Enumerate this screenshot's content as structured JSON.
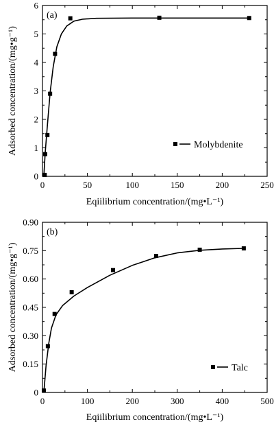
{
  "chart_data": [
    {
      "type": "scatter",
      "panel_label": "(a)",
      "xlabel": "Eqiilibrium concentration/(mg•L⁻¹)",
      "ylabel": "Adsorbed concentration/(mg•g⁻¹)",
      "xlim": [
        0,
        250
      ],
      "ylim": [
        0,
        6
      ],
      "x_ticks": [
        0,
        50,
        100,
        150,
        200,
        250
      ],
      "y_ticks": [
        0,
        1,
        2,
        3,
        4,
        5,
        6
      ],
      "x_tick_labels": [
        "0",
        "50",
        "100",
        "150",
        "200",
        "250"
      ],
      "y_tick_labels": [
        "0",
        "1",
        "2",
        "3",
        "4",
        "5",
        "6"
      ],
      "legend_position": "right",
      "series": [
        {
          "name": "Molybdenite",
          "marker": "square",
          "color": "#000000",
          "points": [
            {
              "x": 2.5,
              "y": 0.05
            },
            {
              "x": 3.0,
              "y": 0.78
            },
            {
              "x": 5.5,
              "y": 1.45
            },
            {
              "x": 8.5,
              "y": 2.9
            },
            {
              "x": 14.0,
              "y": 4.3
            },
            {
              "x": 31.0,
              "y": 5.55
            },
            {
              "x": 130.0,
              "y": 5.57
            },
            {
              "x": 230.0,
              "y": 5.56
            }
          ],
          "fit": [
            {
              "x": 1.5,
              "y": 0.0
            },
            {
              "x": 3.0,
              "y": 0.8
            },
            {
              "x": 5.5,
              "y": 1.8
            },
            {
              "x": 8.5,
              "y": 2.95
            },
            {
              "x": 12.0,
              "y": 3.85
            },
            {
              "x": 16.0,
              "y": 4.55
            },
            {
              "x": 21.0,
              "y": 5.0
            },
            {
              "x": 27.0,
              "y": 5.28
            },
            {
              "x": 35.0,
              "y": 5.45
            },
            {
              "x": 45.0,
              "y": 5.52
            },
            {
              "x": 60.0,
              "y": 5.55
            },
            {
              "x": 100.0,
              "y": 5.56
            },
            {
              "x": 230.0,
              "y": 5.56
            }
          ]
        }
      ]
    },
    {
      "type": "scatter",
      "panel_label": "(b)",
      "xlabel": "Eqiilibrium concentration/(mg•L⁻¹)",
      "ylabel": "Adsorbed concentration/(mg•g⁻¹)",
      "xlim": [
        0,
        500
      ],
      "ylim": [
        0,
        0.9
      ],
      "x_ticks": [
        0,
        100,
        200,
        300,
        400,
        500
      ],
      "y_ticks": [
        0,
        0.15,
        0.3,
        0.45,
        0.6,
        0.75,
        0.9
      ],
      "x_tick_labels": [
        "0",
        "100",
        "200",
        "300",
        "400",
        "500"
      ],
      "y_tick_labels": [
        "0",
        "0.15",
        "0.30",
        "0.45",
        "0.60",
        "0.75",
        "0.90"
      ],
      "legend_position": "right",
      "series": [
        {
          "name": "Talc",
          "marker": "square",
          "color": "#000000",
          "points": [
            {
              "x": 3,
              "y": 0.01
            },
            {
              "x": 12,
              "y": 0.245
            },
            {
              "x": 27,
              "y": 0.415
            },
            {
              "x": 65,
              "y": 0.53
            },
            {
              "x": 157,
              "y": 0.647
            },
            {
              "x": 253,
              "y": 0.722
            },
            {
              "x": 350,
              "y": 0.755
            },
            {
              "x": 448,
              "y": 0.762
            }
          ],
          "fit": [
            {
              "x": 3,
              "y": 0.0
            },
            {
              "x": 8,
              "y": 0.14
            },
            {
              "x": 14,
              "y": 0.26
            },
            {
              "x": 20,
              "y": 0.34
            },
            {
              "x": 30,
              "y": 0.41
            },
            {
              "x": 45,
              "y": 0.46
            },
            {
              "x": 70,
              "y": 0.51
            },
            {
              "x": 100,
              "y": 0.555
            },
            {
              "x": 150,
              "y": 0.62
            },
            {
              "x": 200,
              "y": 0.672
            },
            {
              "x": 250,
              "y": 0.712
            },
            {
              "x": 300,
              "y": 0.738
            },
            {
              "x": 350,
              "y": 0.752
            },
            {
              "x": 400,
              "y": 0.759
            },
            {
              "x": 448,
              "y": 0.762
            }
          ]
        }
      ]
    }
  ]
}
